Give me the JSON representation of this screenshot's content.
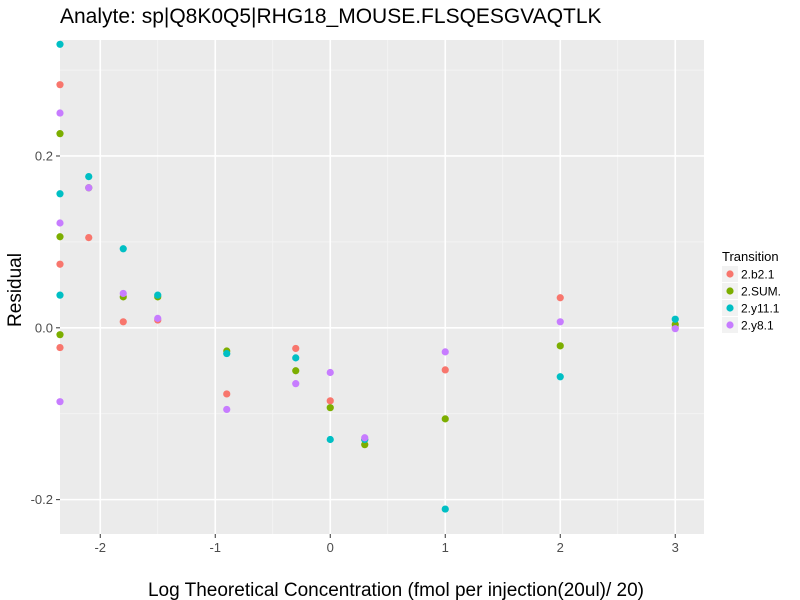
{
  "chart_data": {
    "type": "scatter",
    "title": "Analyte: sp|Q8K0Q5|RHG18_MOUSE.FLSQESGVAQTLK",
    "xlabel": "Log Theoretical Concentration (fmol per injection(20ul)/ 20)",
    "ylabel": "Residual",
    "xlim": [
      -2.35,
      3.25
    ],
    "ylim": [
      -0.24,
      0.335
    ],
    "x_ticks": [
      -2,
      -1,
      0,
      1,
      2,
      3
    ],
    "y_ticks": [
      -0.2,
      0.0,
      0.2
    ],
    "x_tick_labels": [
      "-2",
      "-1",
      "0",
      "1",
      "2",
      "3"
    ],
    "y_tick_labels": [
      "-0.2",
      "0.0",
      "0.2"
    ],
    "grid": true,
    "legend": {
      "title": "Transition",
      "position": "right"
    },
    "series": [
      {
        "name": "2.b2.1",
        "color": "#F8766D",
        "points": [
          [
            -2.35,
            0.283
          ],
          [
            -2.35,
            0.074
          ],
          [
            -2.35,
            -0.023
          ],
          [
            -2.1,
            0.105
          ],
          [
            -1.8,
            0.007
          ],
          [
            -1.5,
            0.009
          ],
          [
            -0.9,
            -0.077
          ],
          [
            -0.3,
            -0.024
          ],
          [
            0.0,
            -0.085
          ],
          [
            0.3,
            -0.13
          ],
          [
            1.0,
            -0.049
          ],
          [
            2.0,
            0.035
          ],
          [
            3.0,
            0.0
          ]
        ]
      },
      {
        "name": "2.SUM.",
        "color": "#7CAE00",
        "points": [
          [
            -2.35,
            0.226
          ],
          [
            -2.35,
            0.106
          ],
          [
            -2.35,
            -0.008
          ],
          [
            -2.1,
            0.163
          ],
          [
            -1.8,
            0.036
          ],
          [
            -1.5,
            0.036
          ],
          [
            -0.9,
            -0.027
          ],
          [
            -0.3,
            -0.05
          ],
          [
            0.0,
            -0.093
          ],
          [
            0.3,
            -0.136
          ],
          [
            1.0,
            -0.106
          ],
          [
            2.0,
            -0.021
          ],
          [
            3.0,
            0.004
          ]
        ]
      },
      {
        "name": "2.y11.1",
        "color": "#00BFC4",
        "points": [
          [
            -2.35,
            0.33
          ],
          [
            -2.35,
            0.156
          ],
          [
            -2.35,
            0.038
          ],
          [
            -2.1,
            0.176
          ],
          [
            -1.8,
            0.092
          ],
          [
            -1.5,
            0.038
          ],
          [
            -0.9,
            -0.03
          ],
          [
            -0.3,
            -0.035
          ],
          [
            0.0,
            -0.13
          ],
          [
            0.3,
            -0.13
          ],
          [
            1.0,
            -0.211
          ],
          [
            2.0,
            -0.057
          ],
          [
            3.0,
            0.01
          ]
        ]
      },
      {
        "name": "2.y8.1",
        "color": "#C77CFF",
        "points": [
          [
            -2.35,
            0.25
          ],
          [
            -2.35,
            0.122
          ],
          [
            -2.35,
            -0.086
          ],
          [
            -2.1,
            0.163
          ],
          [
            -1.8,
            0.04
          ],
          [
            -1.5,
            0.011
          ],
          [
            -0.9,
            -0.095
          ],
          [
            -0.3,
            -0.065
          ],
          [
            0.0,
            -0.052
          ],
          [
            0.3,
            -0.128
          ],
          [
            1.0,
            -0.028
          ],
          [
            2.0,
            0.007
          ],
          [
            3.0,
            -0.001
          ]
        ]
      }
    ]
  }
}
